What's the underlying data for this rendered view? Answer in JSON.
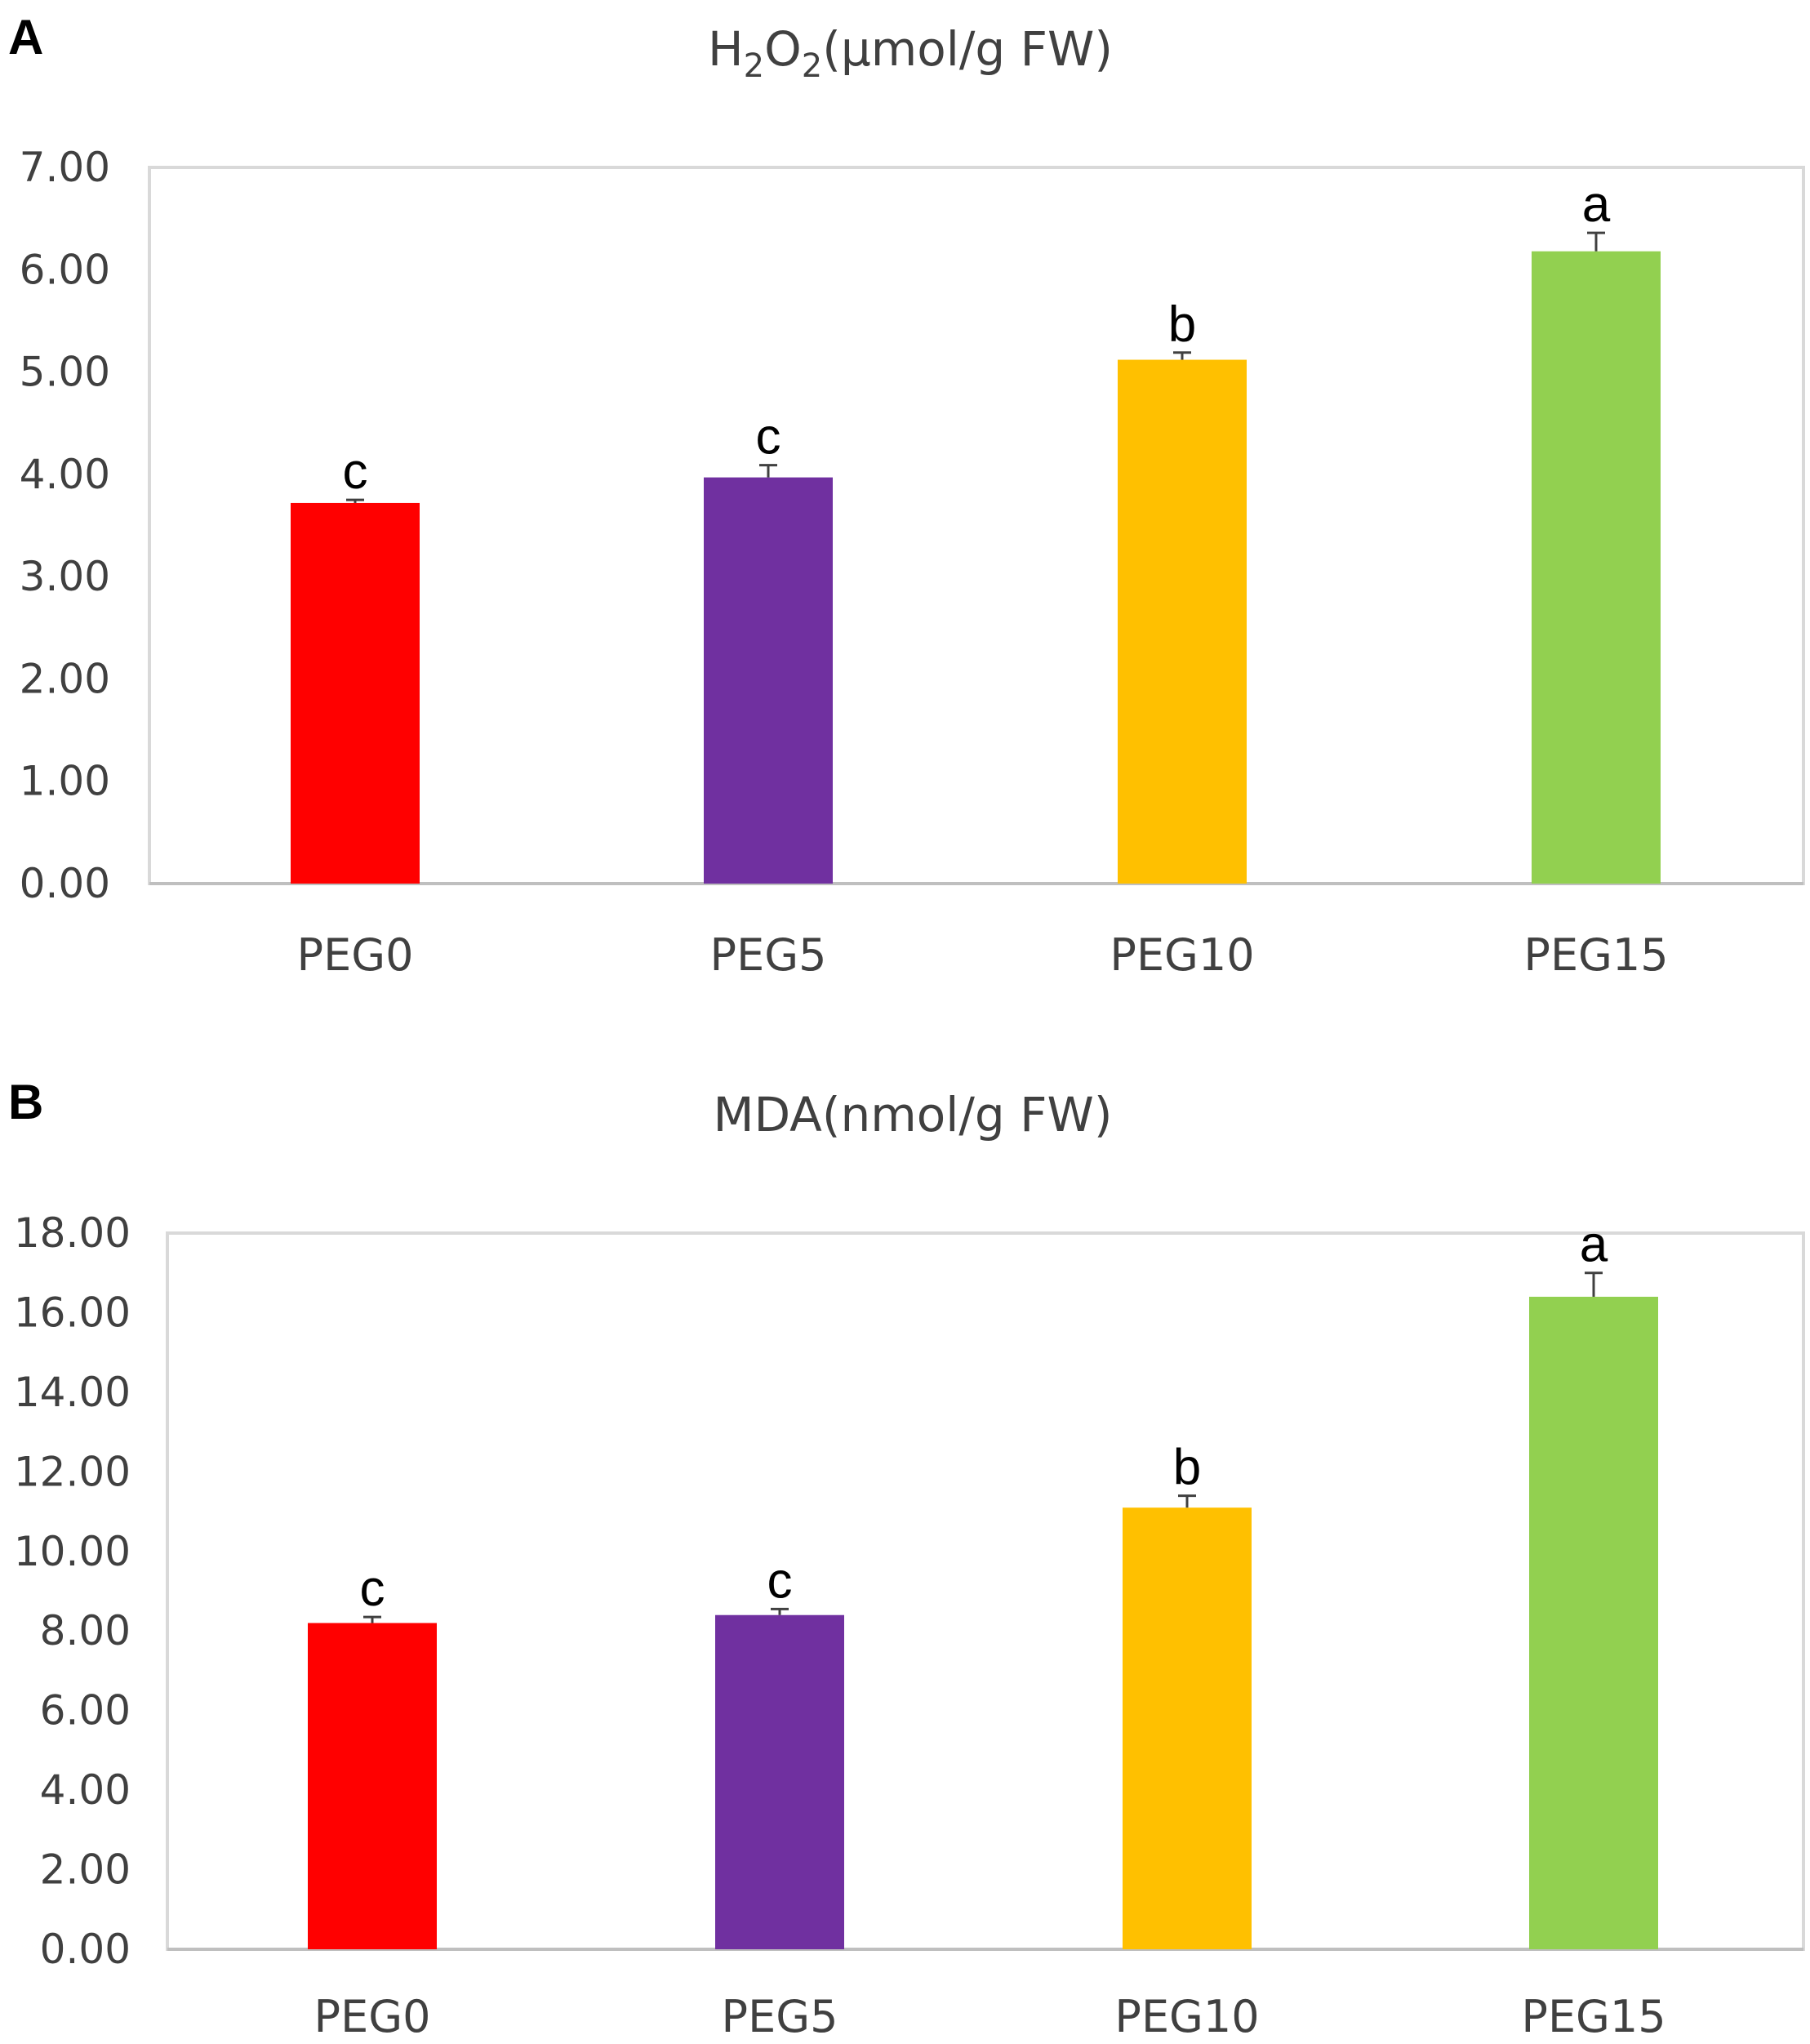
{
  "colors": {
    "categories": [
      "#ff0000",
      "#7030a0",
      "#ffc000",
      "#92d050"
    ]
  },
  "chart_data": [
    {
      "type": "bar",
      "panel": "A",
      "title_parts": [
        "H",
        "2",
        "O",
        "2",
        "(μmol/g FW)"
      ],
      "categories": [
        "PEG0",
        "PEG5",
        "PEG10",
        "PEG15"
      ],
      "values": [
        3.72,
        3.97,
        5.12,
        6.18
      ],
      "errors": [
        0.03,
        0.12,
        0.07,
        0.18
      ],
      "significance": [
        "c",
        "c",
        "b",
        "a"
      ],
      "ylim": [
        0,
        7
      ],
      "ytick_step": 1,
      "ytick_labels": [
        "0.00",
        "1.00",
        "2.00",
        "3.00",
        "4.00",
        "5.00",
        "6.00",
        "7.00"
      ]
    },
    {
      "type": "bar",
      "panel": "B",
      "title_parts": [
        "MDA(nmol/g FW)"
      ],
      "categories": [
        "PEG0",
        "PEG5",
        "PEG10",
        "PEG15"
      ],
      "values": [
        8.2,
        8.4,
        11.1,
        16.4
      ],
      "errors": [
        0.15,
        0.15,
        0.3,
        0.6
      ],
      "significance": [
        "c",
        "c",
        "b",
        "a"
      ],
      "ylim": [
        0,
        18
      ],
      "ytick_step": 2,
      "ytick_labels": [
        "0.00",
        "2.00",
        "4.00",
        "6.00",
        "8.00",
        "10.00",
        "12.00",
        "14.00",
        "16.00",
        "18.00"
      ]
    }
  ]
}
